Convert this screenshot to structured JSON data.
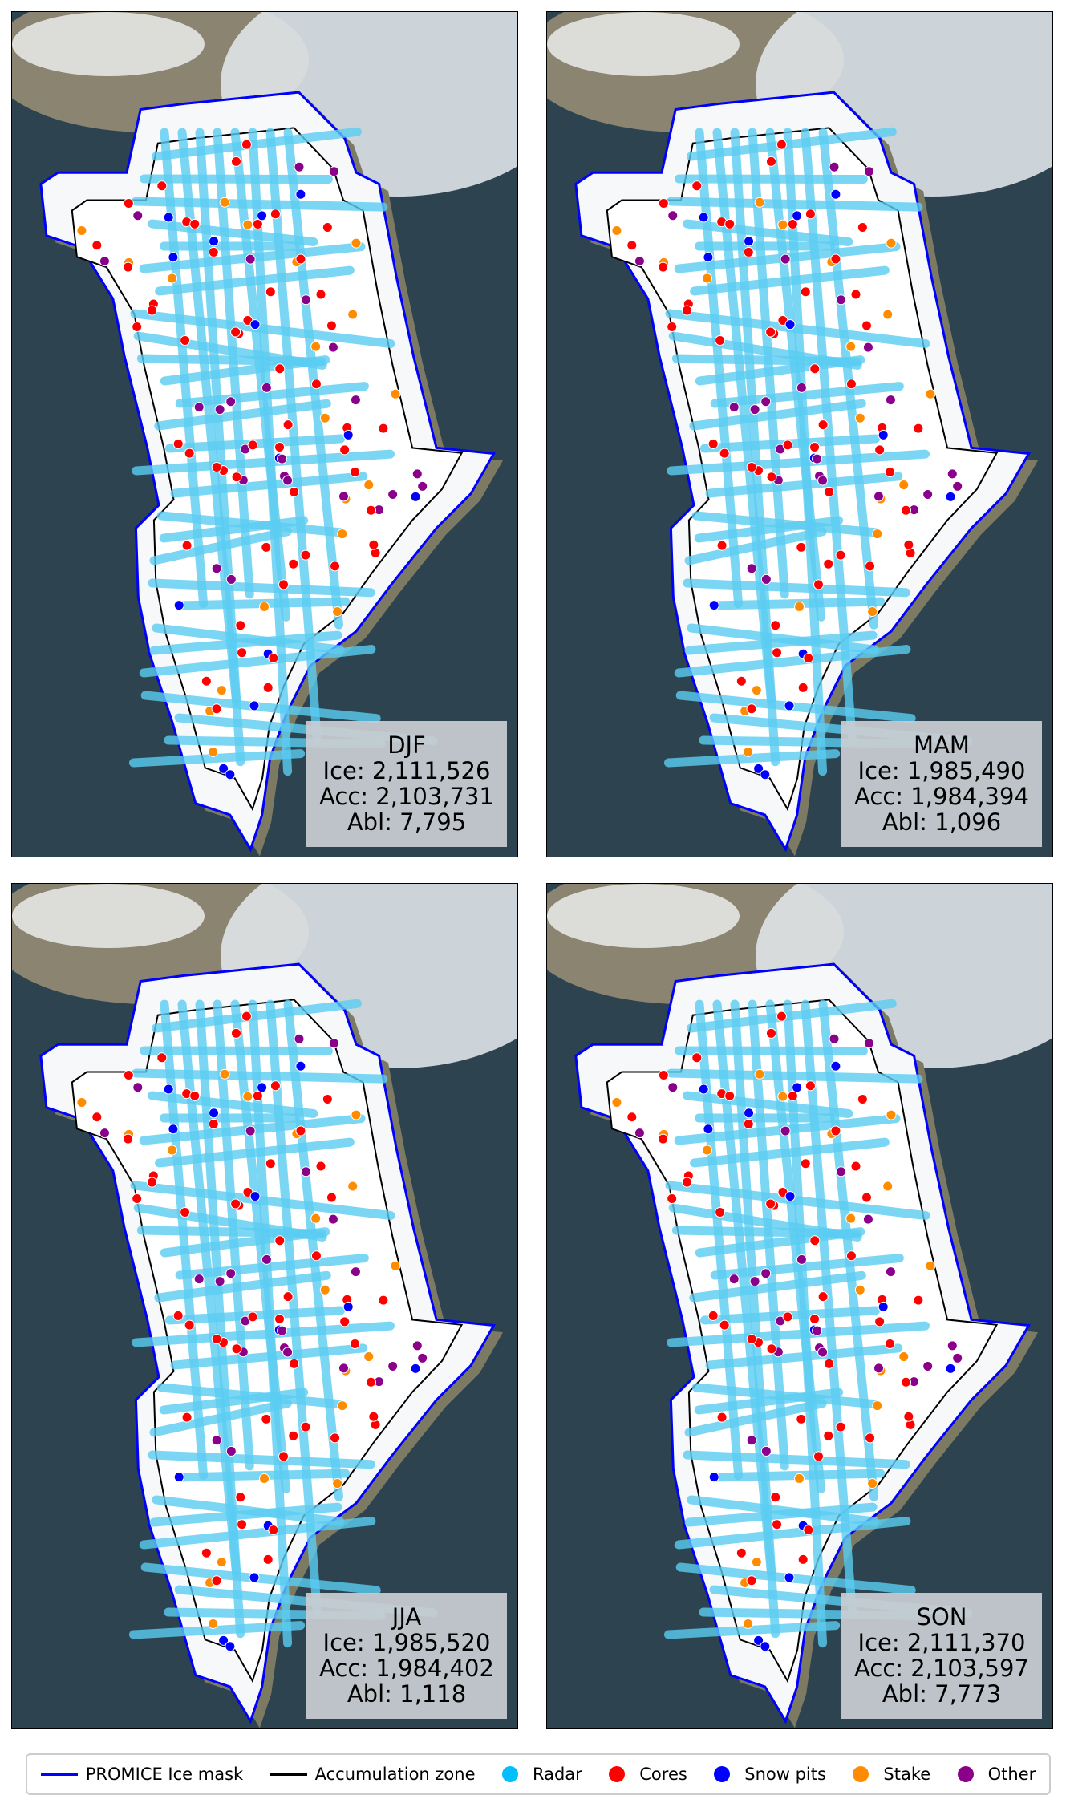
{
  "panels": [
    {
      "season": "DJF",
      "ice": "Ice: 2,111,526",
      "acc": "Acc: 2,103,731",
      "abl": "Abl: 7,795"
    },
    {
      "season": "MAM",
      "ice": "Ice: 1,985,490",
      "acc": "Acc: 1,984,394",
      "abl": "Abl: 1,096"
    },
    {
      "season": "JJA",
      "ice": "Ice: 1,985,520",
      "acc": "Acc: 1,984,402",
      "abl": "Abl: 1,118"
    },
    {
      "season": "SON",
      "ice": "Ice: 2,111,370",
      "acc": "Acc: 2,103,597",
      "abl": "Abl: 7,773"
    }
  ],
  "legend": [
    {
      "label": "PROMICE Ice mask",
      "kind": "line",
      "color": "#0000ff"
    },
    {
      "label": "Accumulation zone",
      "kind": "line",
      "color": "#000000"
    },
    {
      "label": "Radar",
      "kind": "dot",
      "color": "#00bfff"
    },
    {
      "label": "Cores",
      "kind": "dot",
      "color": "#ff0000"
    },
    {
      "label": "Snow pits",
      "kind": "dot",
      "color": "#0000ff"
    },
    {
      "label": "Stake",
      "kind": "dot",
      "color": "#ff8c00"
    },
    {
      "label": "Other",
      "kind": "dot",
      "color": "#8b008b"
    }
  ]
}
